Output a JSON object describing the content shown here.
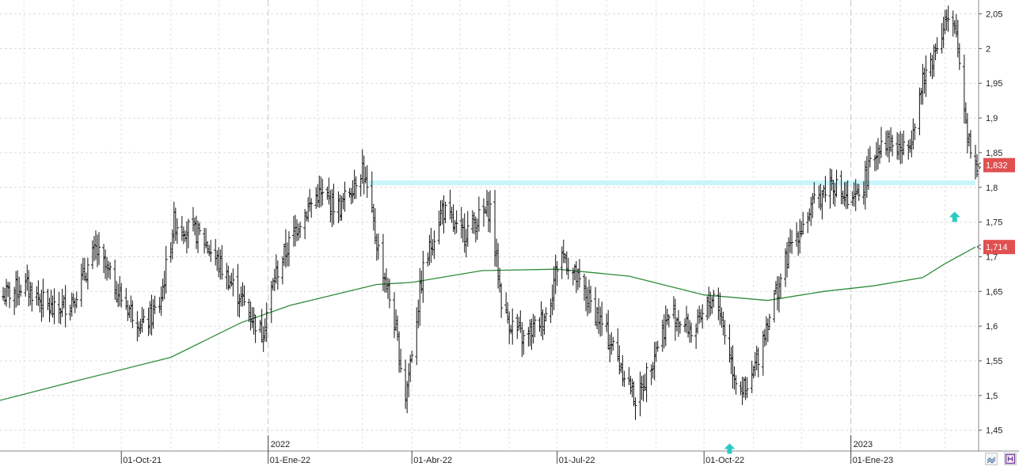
{
  "chart_data": {
    "type": "ohlc",
    "title": "",
    "xlabel": "",
    "ylabel": "",
    "ylim": [
      1.42,
      2.07
    ],
    "y_ticks": [
      "2,05",
      "2",
      "1,95",
      "1,9",
      "1,85",
      "1,8",
      "1,75",
      "1,7",
      "1,65",
      "1,6",
      "1,55",
      "1,5",
      "1,45"
    ],
    "y_tick_values": [
      2.05,
      2.0,
      1.95,
      1.9,
      1.85,
      1.8,
      1.75,
      1.7,
      1.65,
      1.6,
      1.55,
      1.5,
      1.45
    ],
    "x_range": [
      "2021-07-17",
      "2023-03-22"
    ],
    "x_ticks": [
      {
        "date": "2021-10-01",
        "label": "01-Oct-21"
      },
      {
        "date": "2022-01-01",
        "label": "01-Ene-22"
      },
      {
        "date": "2022-04-01",
        "label": "01-Abr-22"
      },
      {
        "date": "2022-07-01",
        "label": "01-Jul-22"
      },
      {
        "date": "2022-10-01",
        "label": "01-Oct-22"
      },
      {
        "date": "2023-01-01",
        "label": "01-Ene-23"
      }
    ],
    "year_labels": [
      {
        "date": "2022-01-01",
        "label": "2022"
      },
      {
        "date": "2023-01-01",
        "label": "2023"
      }
    ],
    "price_path": [
      [
        "2021-07-17",
        1.64
      ],
      [
        "2021-08-01",
        1.66
      ],
      [
        "2021-08-20",
        1.62
      ],
      [
        "2021-09-01",
        1.64
      ],
      [
        "2021-09-15",
        1.71
      ],
      [
        "2021-10-01",
        1.64
      ],
      [
        "2021-10-15",
        1.6
      ],
      [
        "2021-10-25",
        1.63
      ],
      [
        "2021-11-03",
        1.75
      ],
      [
        "2021-11-20",
        1.73
      ],
      [
        "2021-12-01",
        1.69
      ],
      [
        "2021-12-15",
        1.64
      ],
      [
        "2021-12-28",
        1.59
      ],
      [
        "2022-01-05",
        1.67
      ],
      [
        "2022-01-20",
        1.75
      ],
      [
        "2022-02-01",
        1.79
      ],
      [
        "2022-02-15",
        1.77
      ],
      [
        "2022-03-01",
        1.83
      ],
      [
        "2022-03-10",
        1.72
      ],
      [
        "2022-03-20",
        1.62
      ],
      [
        "2022-03-28",
        1.5
      ],
      [
        "2022-04-08",
        1.68
      ],
      [
        "2022-04-20",
        1.77
      ],
      [
        "2022-05-01",
        1.73
      ],
      [
        "2022-05-20",
        1.77
      ],
      [
        "2022-05-28",
        1.62
      ],
      [
        "2022-06-10",
        1.58
      ],
      [
        "2022-06-25",
        1.62
      ],
      [
        "2022-07-03",
        1.71
      ],
      [
        "2022-07-15",
        1.66
      ],
      [
        "2022-07-25",
        1.62
      ],
      [
        "2022-08-05",
        1.57
      ],
      [
        "2022-08-20",
        1.49
      ],
      [
        "2022-09-01",
        1.57
      ],
      [
        "2022-09-10",
        1.62
      ],
      [
        "2022-09-25",
        1.59
      ],
      [
        "2022-10-08",
        1.65
      ],
      [
        "2022-10-20",
        1.53
      ],
      [
        "2022-10-28",
        1.5
      ],
      [
        "2022-11-10",
        1.61
      ],
      [
        "2022-11-25",
        1.72
      ],
      [
        "2022-12-10",
        1.78
      ],
      [
        "2022-12-20",
        1.81
      ],
      [
        "2023-01-01",
        1.77
      ],
      [
        "2023-01-08",
        1.8
      ],
      [
        "2023-01-20",
        1.87
      ],
      [
        "2023-02-05",
        1.85
      ],
      [
        "2023-02-15",
        1.95
      ],
      [
        "2023-03-01",
        2.04
      ],
      [
        "2023-03-08",
        2.02
      ],
      [
        "2023-03-15",
        1.88
      ],
      [
        "2023-03-20",
        1.83
      ]
    ],
    "moving_average": {
      "color": "#2e8b3a",
      "points": [
        [
          "2021-07-17",
          1.493
        ],
        [
          "2021-09-01",
          1.52
        ],
        [
          "2021-11-01",
          1.555
        ],
        [
          "2021-12-15",
          1.605
        ],
        [
          "2022-01-15",
          1.63
        ],
        [
          "2022-03-10",
          1.66
        ],
        [
          "2022-04-01",
          1.663
        ],
        [
          "2022-05-15",
          1.68
        ],
        [
          "2022-07-01",
          1.682
        ],
        [
          "2022-08-15",
          1.672
        ],
        [
          "2022-10-01",
          1.645
        ],
        [
          "2022-11-10",
          1.637
        ],
        [
          "2022-12-15",
          1.65
        ],
        [
          "2023-01-15",
          1.658
        ],
        [
          "2023-02-15",
          1.67
        ],
        [
          "2023-03-01",
          1.69
        ],
        [
          "2023-03-20",
          1.714
        ]
      ]
    },
    "support_band": {
      "color": "#c8f5fa",
      "low": 1.803,
      "high": 1.81,
      "start": "2022-03-05",
      "end": "2023-03-20"
    },
    "price_labels": [
      {
        "value": 1.832,
        "label": "1,832",
        "color": "#e05050"
      },
      {
        "value": 1.714,
        "label": "1,714",
        "color": "#e05050"
      }
    ],
    "markers": [
      {
        "type": "arrow-up",
        "date": "2023-03-07",
        "value": 1.757,
        "color": "#2cc9c4"
      },
      {
        "type": "arrow-up",
        "date": "2022-10-17",
        "value": 1.423,
        "color": "#2cc9c4"
      }
    ],
    "grid": true,
    "legend": "none"
  }
}
